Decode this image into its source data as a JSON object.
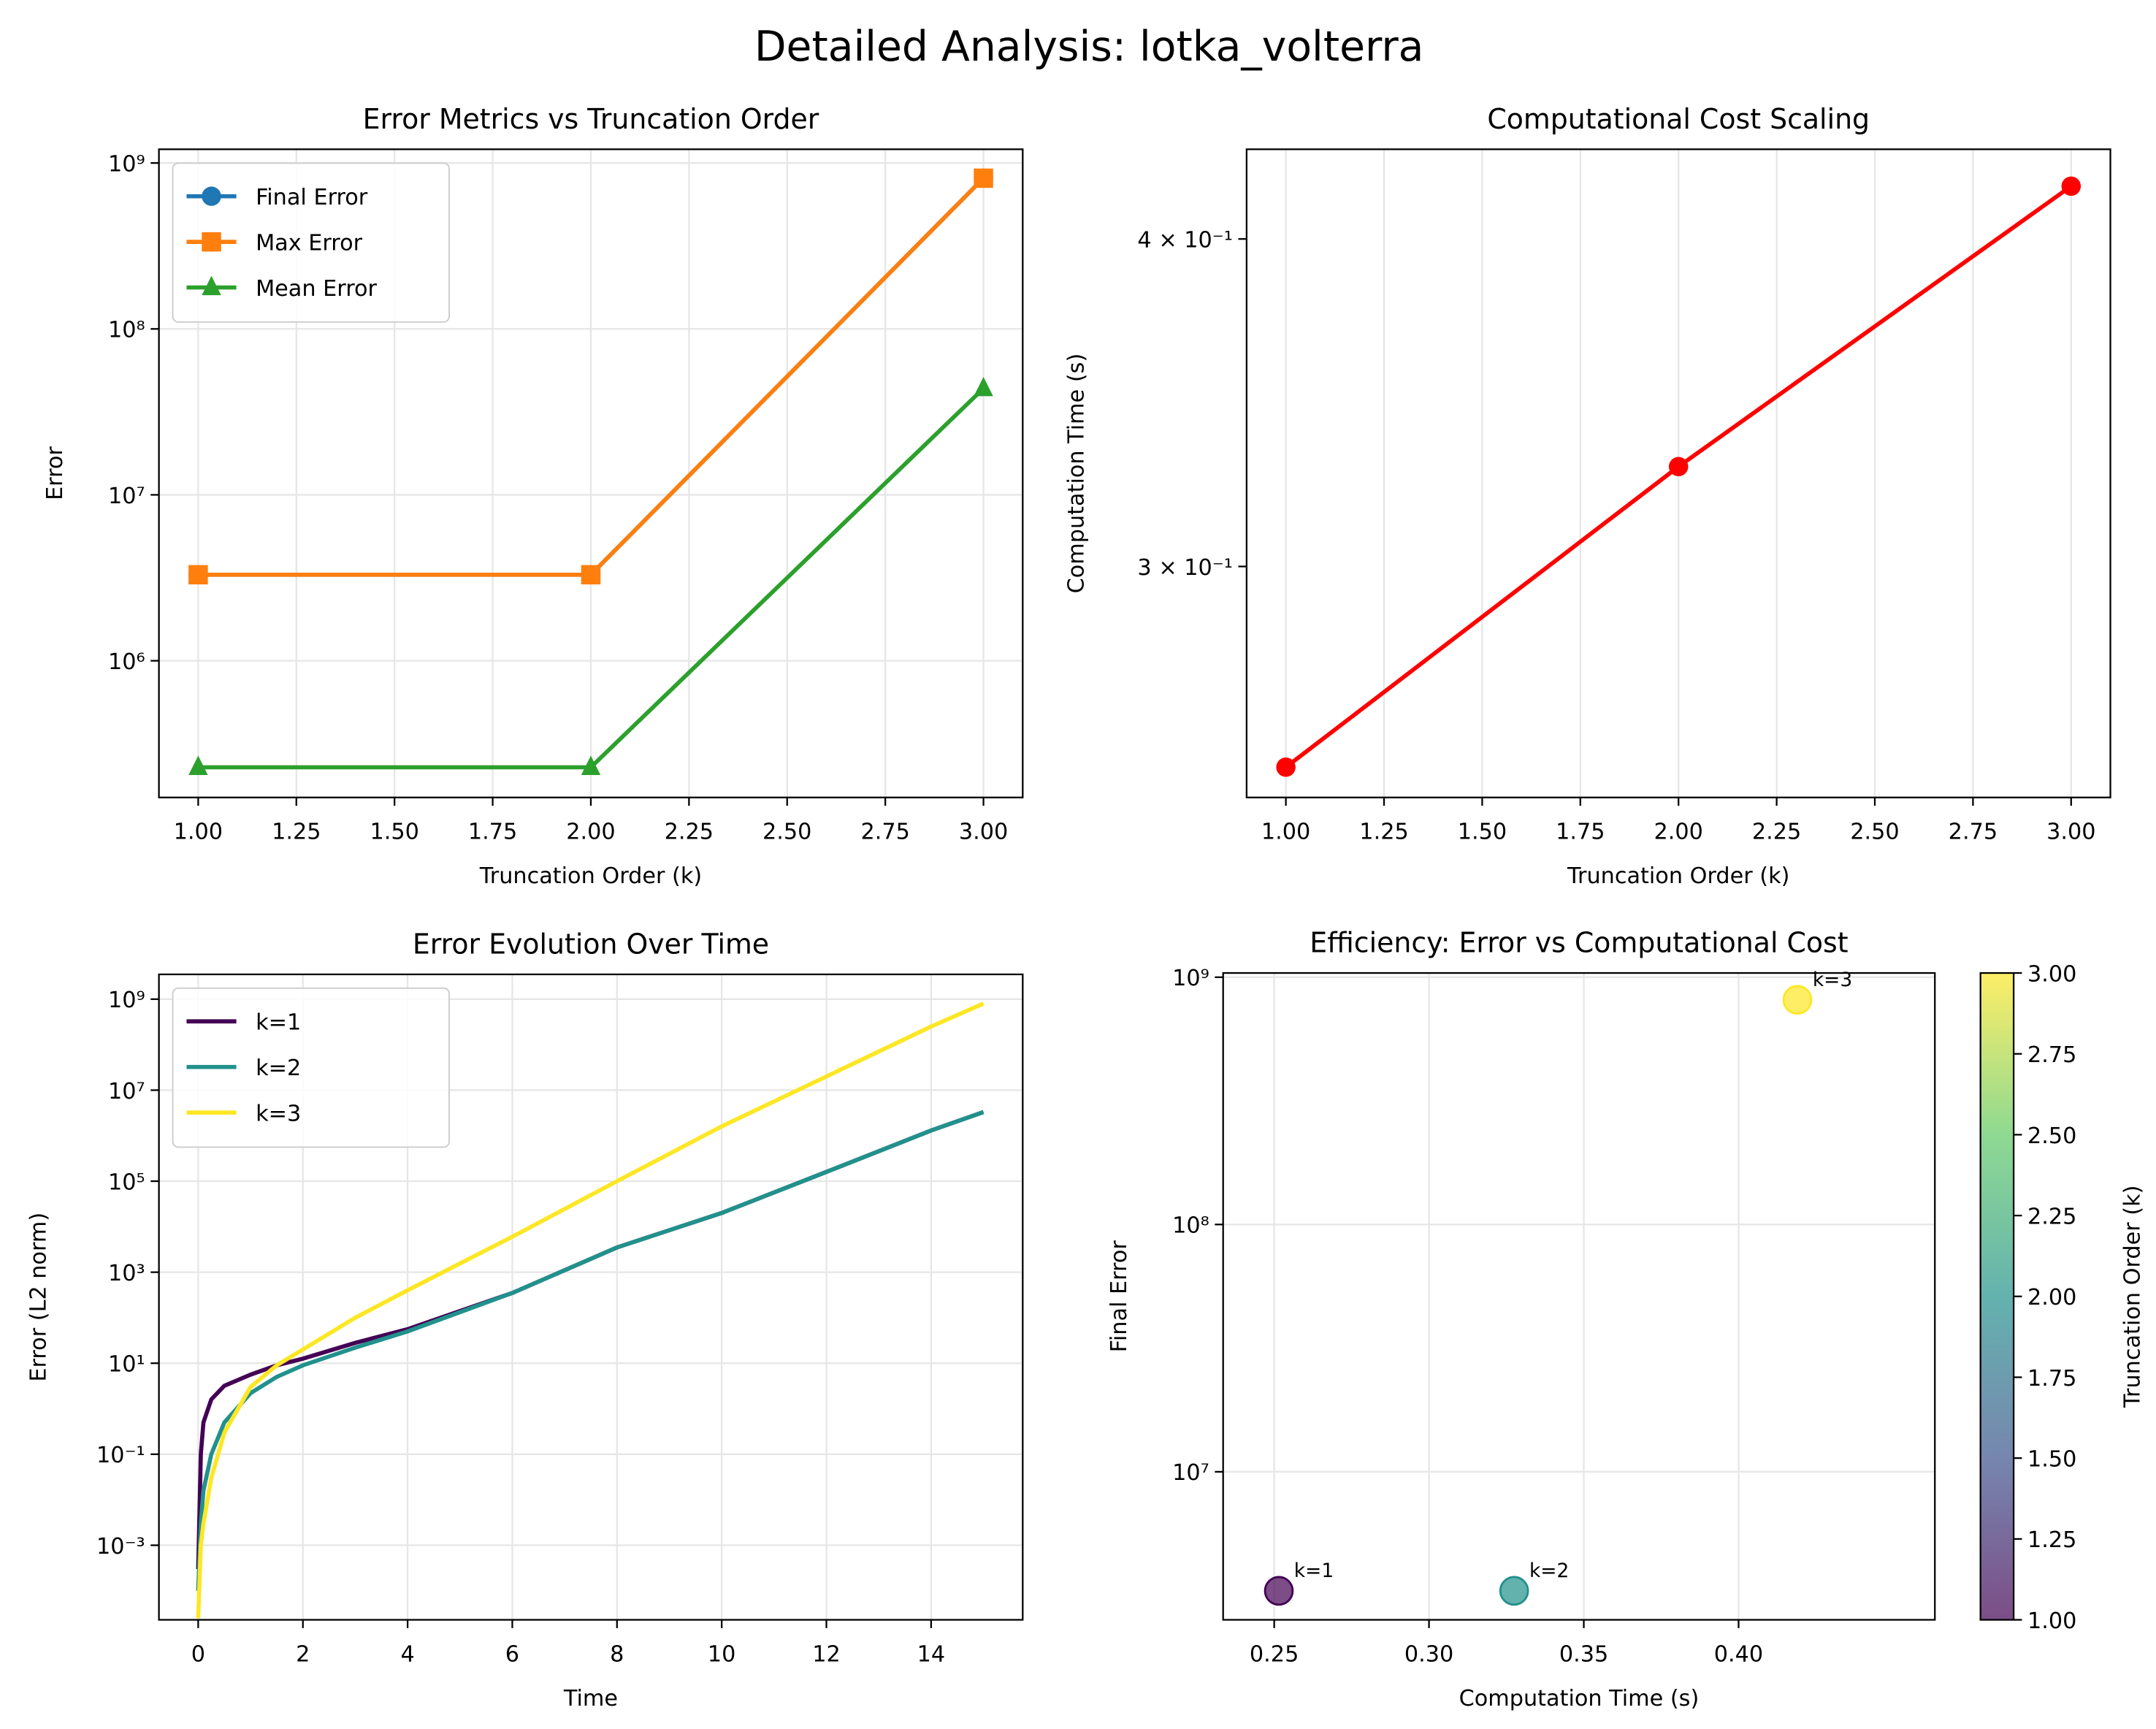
{
  "title": "Detailed Analysis: lotka_volterra",
  "chart_data": [
    {
      "type": "line",
      "title": "Error Metrics vs Truncation Order",
      "xlabel": "Truncation Order (k)",
      "ylabel": "Error",
      "x": [
        1,
        2,
        3
      ],
      "series": [
        {
          "name": "Final Error",
          "color": "#1f77b4",
          "marker": "circle",
          "values": [
            3300000,
            3300000,
            810000000
          ]
        },
        {
          "name": "Max Error",
          "color": "#ff7f0e",
          "marker": "square",
          "values": [
            3300000,
            3300000,
            810000000
          ]
        },
        {
          "name": "Mean Error",
          "color": "#2ca02c",
          "marker": "triangle",
          "values": [
            228000,
            228000,
            43800000
          ]
        }
      ],
      "xlim": [
        0.9,
        3.1
      ],
      "xticks": [
        {
          "value": 1,
          "label": "1.00"
        },
        {
          "value": 1.25,
          "label": "1.25"
        },
        {
          "value": 1.5,
          "label": "1.50"
        },
        {
          "value": 1.75,
          "label": "1.75"
        },
        {
          "value": 2,
          "label": "2.00"
        },
        {
          "value": 2.25,
          "label": "2.25"
        },
        {
          "value": 2.5,
          "label": "2.50"
        },
        {
          "value": 2.75,
          "label": "2.75"
        },
        {
          "value": 3,
          "label": "3.00"
        }
      ],
      "ylim": [
        150000,
        1210000000
      ],
      "ylog": true,
      "yticks": [
        {
          "value": 1000000,
          "label": "10⁶"
        },
        {
          "value": 10000000,
          "label": "10⁷"
        },
        {
          "value": 100000000,
          "label": "10⁸"
        },
        {
          "value": 1000000000,
          "label": "10⁹"
        }
      ],
      "grid": "both",
      "legend": "upper left"
    },
    {
      "type": "line",
      "title": "Computational Cost Scaling",
      "xlabel": "Truncation Order (k)",
      "ylabel": "Computation Time (s)",
      "x": [
        1,
        2,
        3
      ],
      "series": [
        {
          "color": "#ff0000",
          "marker": "circle",
          "values": [
            0.2515,
            0.3275,
            0.419
          ]
        }
      ],
      "xlim": [
        0.9,
        3.1
      ],
      "xticks": [
        {
          "value": 1,
          "label": "1.00"
        },
        {
          "value": 1.25,
          "label": "1.25"
        },
        {
          "value": 1.5,
          "label": "1.50"
        },
        {
          "value": 1.75,
          "label": "1.75"
        },
        {
          "value": 2,
          "label": "2.00"
        },
        {
          "value": 2.25,
          "label": "2.25"
        },
        {
          "value": 2.5,
          "label": "2.50"
        },
        {
          "value": 2.75,
          "label": "2.75"
        },
        {
          "value": 3,
          "label": "3.00"
        }
      ],
      "ylim": [
        0.2449,
        0.4328
      ],
      "ylog": true,
      "yticks": [
        {
          "value": 0.3,
          "label": "3 × 10⁻¹"
        },
        {
          "value": 0.4,
          "label": "4 × 10⁻¹"
        }
      ],
      "grid": "x"
    },
    {
      "type": "line",
      "title": "Error Evolution Over Time",
      "xlabel": "Time",
      "ylabel": "Error (L2 norm)",
      "x": [
        0,
        0.05,
        0.1,
        0.25,
        0.5,
        1,
        1.5,
        2,
        3,
        4,
        6,
        8,
        10,
        12,
        14,
        15
      ],
      "series": [
        {
          "name": "k=1",
          "color": "#440154",
          "values": [
            0.0003,
            0.1,
            0.5,
            1.6,
            3.2,
            5.6,
            9,
            12.6,
            28,
            56,
            350,
            3500,
            20000,
            160000,
            1300000,
            3300000
          ]
        },
        {
          "name": "k=2",
          "color": "#21918c",
          "values": [
            0.0001,
            0.003,
            0.016,
            0.1,
            0.5,
            2.2,
            5,
            9,
            22,
            50,
            350,
            3500,
            20000,
            160000,
            1300000,
            3300000
          ]
        },
        {
          "name": "k=3",
          "color": "#fde725",
          "values": [
            2.5e-05,
            0.001,
            0.003,
            0.03,
            0.3,
            3,
            9,
            20,
            100,
            400,
            6000,
            100000,
            1600000,
            20000000,
            250000000,
            800000000
          ]
        }
      ],
      "xlim": [
        -0.75,
        15.75
      ],
      "xticks": [
        0,
        2,
        4,
        6,
        8,
        10,
        12,
        14
      ],
      "ylim": [
        2.3e-05,
        3500000000
      ],
      "ylog": true,
      "yticks": [
        {
          "value": 0.001,
          "label": "10⁻³"
        },
        {
          "value": 0.1,
          "label": "10⁻¹"
        },
        {
          "value": 10,
          "label": "10¹"
        },
        {
          "value": 1000,
          "label": "10³"
        },
        {
          "value": 100000,
          "label": "10⁵"
        },
        {
          "value": 10000000,
          "label": "10⁷"
        },
        {
          "value": 1000000000,
          "label": "10⁹"
        }
      ],
      "grid": "both",
      "legend": "upper left"
    },
    {
      "type": "scatter",
      "title": "Efficiency: Error vs Computational Cost",
      "xlabel": "Computation Time (s)",
      "ylabel": "Final Error",
      "x": [
        0.2515,
        0.3275,
        0.419
      ],
      "values": [
        3300000,
        3300000,
        810000000
      ],
      "colors": [
        "#440154",
        "#21918c",
        "#fde725"
      ],
      "point_labels": [
        "k=1",
        "k=2",
        "k=3"
      ],
      "xlim": [
        0.2335,
        0.4634
      ],
      "xticks": [
        {
          "value": 0.25,
          "label": "0.25"
        },
        {
          "value": 0.3,
          "label": "0.30"
        },
        {
          "value": 0.35,
          "label": "0.35"
        },
        {
          "value": 0.4,
          "label": "0.40"
        }
      ],
      "ylim": [
        2520000,
        1040000000
      ],
      "ylog": true,
      "yticks": [
        {
          "value": 10000000,
          "label": "10⁷"
        },
        {
          "value": 100000000,
          "label": "10⁸"
        },
        {
          "value": 1000000000,
          "label": "10⁹"
        }
      ],
      "grid": "both",
      "colorbar": {
        "label": "Truncation Order (k)",
        "colormap": [
          "#440154",
          "#3b528b",
          "#21918c",
          "#5ec962",
          "#fde725"
        ],
        "lim": [
          1,
          3
        ],
        "ticks": [
          {
            "value": 1,
            "label": "1.00"
          },
          {
            "value": 1.25,
            "label": "1.25"
          },
          {
            "value": 1.5,
            "label": "1.50"
          },
          {
            "value": 1.75,
            "label": "1.75"
          },
          {
            "value": 2,
            "label": "2.00"
          },
          {
            "value": 2.25,
            "label": "2.25"
          },
          {
            "value": 2.5,
            "label": "2.50"
          },
          {
            "value": 2.75,
            "label": "2.75"
          },
          {
            "value": 3,
            "label": "3.00"
          }
        ]
      }
    }
  ]
}
